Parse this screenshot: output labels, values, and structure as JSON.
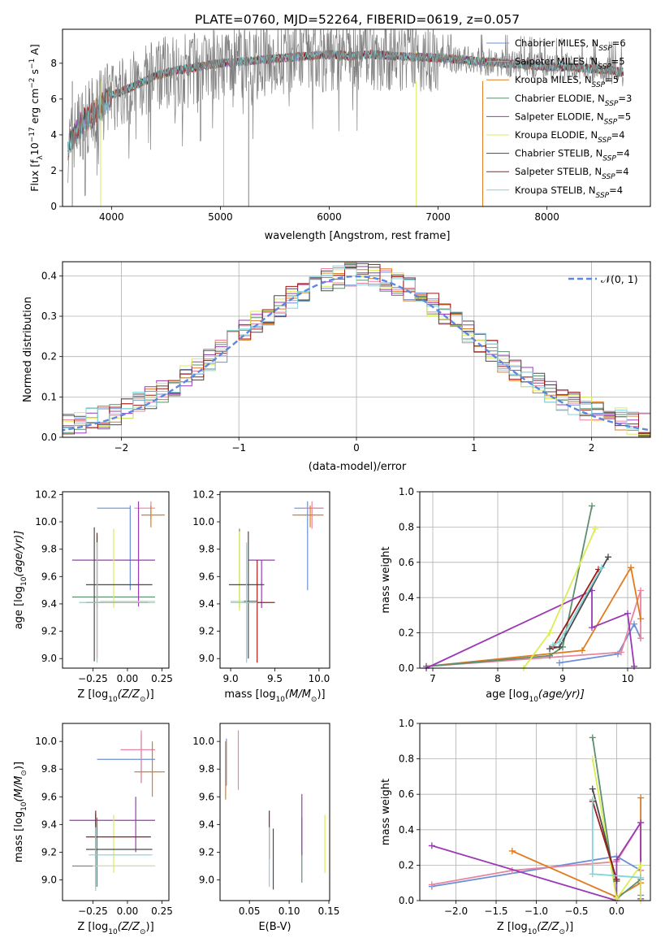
{
  "title": "PLATE=0760, MJD=52264, FIBERID=0619, z=0.057",
  "colors": [
    "#6b8fd6",
    "#e8849f",
    "#e07b20",
    "#5e8f6e",
    "#9b3ab4",
    "#dcec54",
    "#4a4a4a",
    "#9e1b1b",
    "#82d4d8"
  ],
  "legend_top": [
    {
      "pre": "Chabrier MILES, N",
      "sub": "SSP",
      "post": "=6"
    },
    {
      "pre": "Salpeter MILES, N",
      "sub": "SSP",
      "post": "=5"
    },
    {
      "pre": "Kroupa MILES, N",
      "sub": "SSP",
      "post": "=5"
    },
    {
      "pre": "Chabrier ELODIE, N",
      "sub": "SSP",
      "post": "=3"
    },
    {
      "pre": "Salpeter ELODIE, N",
      "sub": "SSP",
      "post": "=5"
    },
    {
      "pre": "Kroupa ELODIE, N",
      "sub": "SSP",
      "post": "=4"
    },
    {
      "pre": "Chabrier STELIB, N",
      "sub": "SSP",
      "post": "=4"
    },
    {
      "pre": "Salpeter STELIB, N",
      "sub": "SSP",
      "post": "=4"
    },
    {
      "pre": "Kroupa STELIB, N",
      "sub": "SSP",
      "post": "=4"
    }
  ],
  "chart_data": [
    {
      "id": "spectrum",
      "type": "line",
      "xlabel": "wavelength [Angstrom, rest frame]",
      "ylabel_pre": "Flux [f",
      "ylabel_post": "10",
      "ylabel_tail": " erg cm",
      "ylabel_u": " s",
      "ylabel_end": " A",
      "ylabel_exp1": "−17",
      "ylabel_exp2": "−2",
      "ylabel_exp3": "−1",
      "ylabel_l": "λ",
      "xlim": [
        3550,
        8950
      ],
      "ylim": [
        0,
        9.9
      ],
      "xticks": [
        "4000",
        "5000",
        "6000",
        "7000",
        "8000"
      ],
      "xtick_values": [
        4000,
        5000,
        6000,
        7000,
        8000
      ],
      "yticks": [
        "0",
        "2",
        "4",
        "6",
        "8"
      ],
      "ytick_values": [
        0,
        2,
        4,
        6,
        8
      ],
      "continuum_x": [
        3600,
        3700,
        3800,
        3900,
        4000,
        4200,
        4400,
        4600,
        4800,
        5000,
        5200,
        5400,
        5600,
        5800,
        6000,
        6200,
        6400,
        6600,
        6800,
        7000,
        7200,
        7400,
        7600,
        7800,
        8000,
        8200,
        8400,
        8600,
        8700
      ],
      "continuum_y": [
        3.4,
        4.5,
        5.0,
        5.6,
        6.2,
        6.7,
        7.3,
        7.6,
        7.8,
        8.0,
        8.1,
        8.2,
        8.3,
        8.4,
        8.5,
        8.4,
        8.5,
        8.4,
        8.35,
        8.3,
        8.2,
        8.1,
        8.0,
        7.9,
        7.8,
        7.8,
        7.7,
        7.6,
        7.5
      ],
      "observed_series_color": "#808080"
    },
    {
      "id": "residuals",
      "type": "step",
      "xlabel": "(data-model)/error",
      "ylabel": "Normed distribution",
      "xlim": [
        -2.5,
        2.5
      ],
      "ylim": [
        0,
        0.435
      ],
      "xticks": [
        "−2",
        "−1",
        "0",
        "1",
        "2"
      ],
      "xtick_values": [
        -2,
        -1,
        0,
        1,
        2
      ],
      "yticks": [
        "0.0",
        "0.1",
        "0.2",
        "0.3",
        "0.4"
      ],
      "ytick_values": [
        0,
        0.1,
        0.2,
        0.3,
        0.4
      ],
      "legend": "𝒩(0, 1)",
      "bin_width": 0.1
    },
    {
      "id": "age_vs_Z",
      "type": "errorbar",
      "xlabel": "Z [log",
      "xlabel_sub": "10",
      "xlabel_tail": "(Z/Z",
      "xlabel_end": ")]",
      "ylabel": "age  [log",
      "ylabel_sub": "10",
      "ylabel_tail": "(age/yr)]",
      "xlim": [
        -0.47,
        0.3
      ],
      "ylim": [
        8.93,
        10.22
      ],
      "xticks": [
        "−0.25",
        "0.00",
        "0.25"
      ],
      "xtick_values": [
        -0.25,
        0,
        0.25
      ],
      "yticks": [
        "9.0",
        "9.2",
        "9.4",
        "9.6",
        "9.8",
        "10.0",
        "10.2"
      ],
      "ytick_values": [
        9.0,
        9.2,
        9.4,
        9.6,
        9.8,
        10.0,
        10.2
      ],
      "points": [
        {
          "x": 0.02,
          "y": 10.1,
          "xe": [
            -0.22,
            0.02
          ],
          "ye": [
            9.5,
            10.12
          ],
          "c": 0
        },
        {
          "x": 0.17,
          "y": 10.1,
          "xe": [
            0.05,
            0.2
          ],
          "ye": [
            10.02,
            10.15
          ],
          "c": 1
        },
        {
          "x": 0.17,
          "y": 10.05,
          "xe": [
            0.1,
            0.27
          ],
          "ye": [
            9.96,
            10.12
          ],
          "c": 2
        },
        {
          "x": -0.22,
          "y": 9.45,
          "xe": [
            -0.4,
            0.2
          ],
          "ye": [
            9.37,
            9.9
          ],
          "c": 3
        },
        {
          "x": 0.08,
          "y": 9.72,
          "xe": [
            -0.4,
            0.2
          ],
          "ye": [
            9.38,
            10.15
          ],
          "c": 4
        },
        {
          "x": -0.1,
          "y": 9.42,
          "xe": [
            -0.2,
            0.2
          ],
          "ye": [
            9.37,
            9.95
          ],
          "c": 5
        },
        {
          "x": -0.24,
          "y": 9.54,
          "xe": [
            -0.3,
            0.18
          ],
          "ye": [
            8.98,
            9.96
          ],
          "c": 6
        },
        {
          "x": -0.22,
          "y": 9.41,
          "xe": [
            -0.3,
            0.15
          ],
          "ye": [
            9.0,
            9.92
          ],
          "c": 7
        },
        {
          "x": -0.22,
          "y": 9.41,
          "xe": [
            -0.35,
            0.2
          ],
          "ye": [
            8.97,
            9.85
          ],
          "c": 8
        }
      ]
    },
    {
      "id": "age_vs_mass",
      "type": "errorbar",
      "xlabel": "mass [log",
      "xlabel_sub": "10",
      "xlabel_tail": "(M/M",
      "xlabel_end": ")]",
      "xlim": [
        8.88,
        10.12
      ],
      "ylim": [
        8.93,
        10.22
      ],
      "xticks": [
        "9.0",
        "9.5",
        "10.0"
      ],
      "xtick_values": [
        9.0,
        9.5,
        10.0
      ],
      "yticks": [
        "9.0",
        "9.2",
        "9.4",
        "9.6",
        "9.8",
        "10.0",
        "10.2"
      ],
      "ytick_values": [
        9.0,
        9.2,
        9.4,
        9.6,
        9.8,
        10.0,
        10.2
      ],
      "points": [
        {
          "x": 9.87,
          "y": 10.1,
          "xe": [
            9.72,
            10.05
          ],
          "ye": [
            9.5,
            10.15
          ],
          "c": 0
        },
        {
          "x": 9.92,
          "y": 10.1,
          "xe": [
            9.82,
            10.05
          ],
          "ye": [
            9.95,
            10.15
          ],
          "c": 1
        },
        {
          "x": 9.9,
          "y": 10.05,
          "xe": [
            9.7,
            10.05
          ],
          "ye": [
            9.96,
            10.12
          ],
          "c": 2
        },
        {
          "x": 9.1,
          "y": 9.42,
          "xe": [
            9.0,
            9.3
          ],
          "ye": [
            9.37,
            9.95
          ],
          "c": 3
        },
        {
          "x": 9.35,
          "y": 9.72,
          "xe": [
            9.2,
            9.5
          ],
          "ye": [
            9.37,
            9.72
          ],
          "c": 4
        },
        {
          "x": 9.1,
          "y": 9.42,
          "xe": [
            9.0,
            9.15
          ],
          "ye": [
            9.35,
            9.93
          ],
          "c": 5
        },
        {
          "x": 9.2,
          "y": 9.54,
          "xe": [
            8.98,
            9.38
          ],
          "ye": [
            9.0,
            9.93
          ],
          "c": 6
        },
        {
          "x": 9.3,
          "y": 9.41,
          "xe": [
            9.15,
            9.5
          ],
          "ye": [
            8.97,
            9.72
          ],
          "c": 7
        },
        {
          "x": 9.18,
          "y": 9.41,
          "xe": [
            9.0,
            9.3
          ],
          "ye": [
            8.97,
            9.85
          ],
          "c": 8
        }
      ]
    },
    {
      "id": "weight_vs_age",
      "type": "line",
      "ylabel": "mass weight",
      "xlabel": "age  [log",
      "xlabel_sub": "10",
      "xlabel_tail": "(age/yr)]",
      "xlim": [
        6.8,
        10.35
      ],
      "ylim": [
        0,
        1
      ],
      "xticks": [
        "7",
        "8",
        "9",
        "10"
      ],
      "xtick_values": [
        7,
        8,
        9,
        10
      ],
      "yticks": [
        "0.0",
        "0.2",
        "0.4",
        "0.6",
        "0.8",
        "1.0"
      ],
      "ytick_values": [
        0,
        0.2,
        0.4,
        0.6,
        0.8,
        1.0
      ],
      "series": [
        {
          "c": 0,
          "x": [
            8.95,
            9.85,
            10.1,
            10.2
          ],
          "y": [
            0.03,
            0.08,
            0.25,
            0.17
          ]
        },
        {
          "c": 1,
          "x": [
            6.9,
            9.9,
            10.2,
            10.2
          ],
          "y": [
            0.01,
            0.09,
            0.44,
            0.17
          ]
        },
        {
          "c": 2,
          "x": [
            6.9,
            9.3,
            10.05,
            10.2
          ],
          "y": [
            0.01,
            0.1,
            0.57,
            0.28
          ]
        },
        {
          "c": 3,
          "x": [
            6.9,
            8.8,
            9.0,
            9.45
          ],
          "y": [
            0.01,
            0.07,
            0.12,
            0.92
          ]
        },
        {
          "c": 4,
          "x": [
            6.9,
            9.45,
            9.45,
            10.0,
            10.1
          ],
          "y": [
            0.0,
            0.44,
            0.23,
            0.31,
            0.01
          ]
        },
        {
          "c": 5,
          "x": [
            8.4,
            8.8,
            9.5
          ],
          "y": [
            0.0,
            0.2,
            0.79
          ]
        },
        {
          "c": 6,
          "x": [
            8.8,
            8.95,
            9.7
          ],
          "y": [
            0.11,
            0.12,
            0.63
          ]
        },
        {
          "c": 7,
          "x": [
            8.85,
            9.55
          ],
          "y": [
            0.12,
            0.56
          ]
        },
        {
          "c": 8,
          "x": [
            8.85,
            8.95,
            9.6
          ],
          "y": [
            0.13,
            0.15,
            0.57
          ]
        }
      ]
    },
    {
      "id": "mass_vs_Z",
      "type": "errorbar",
      "ylabel": "mass [log",
      "ylabel_sub": "10",
      "ylabel_tail": "(M/M",
      "ylabel_end": ")]",
      "xlabel": "Z [log",
      "xlabel_sub": "10",
      "xlabel_tail": "(Z/Z",
      "xlabel_end": ")]",
      "xlim": [
        -0.47,
        0.3
      ],
      "ylim": [
        8.85,
        10.13
      ],
      "xticks": [
        "−0.25",
        "0.00",
        "0.25"
      ],
      "xtick_values": [
        -0.25,
        0,
        0.25
      ],
      "yticks": [
        "9.0",
        "9.2",
        "9.4",
        "9.6",
        "9.8",
        "10.0"
      ],
      "ytick_values": [
        9.0,
        9.2,
        9.4,
        9.6,
        9.8,
        10.0
      ],
      "points": [
        {
          "x": 0.1,
          "y": 9.87,
          "xe": [
            -0.22,
            0.2
          ],
          "ye": [
            9.7,
            10.05
          ],
          "c": 0
        },
        {
          "x": 0.1,
          "y": 9.94,
          "xe": [
            -0.05,
            0.2
          ],
          "ye": [
            9.7,
            10.08
          ],
          "c": 1
        },
        {
          "x": 0.18,
          "y": 9.78,
          "xe": [
            0.05,
            0.27
          ],
          "ye": [
            9.6,
            10.0
          ],
          "c": 2
        },
        {
          "x": -0.22,
          "y": 9.1,
          "xe": [
            -0.4,
            0.2
          ],
          "ye": [
            8.95,
            9.45
          ],
          "c": 3
        },
        {
          "x": 0.06,
          "y": 9.43,
          "xe": [
            -0.42,
            0.2
          ],
          "ye": [
            9.2,
            9.6
          ],
          "c": 4
        },
        {
          "x": -0.1,
          "y": 9.1,
          "xe": [
            -0.25,
            0.2
          ],
          "ye": [
            9.05,
            9.47
          ],
          "c": 5
        },
        {
          "x": -0.23,
          "y": 9.22,
          "xe": [
            -0.3,
            0.18
          ],
          "ye": [
            8.95,
            9.48
          ],
          "c": 6
        },
        {
          "x": -0.23,
          "y": 9.31,
          "xe": [
            -0.3,
            0.17
          ],
          "ye": [
            9.15,
            9.5
          ],
          "c": 7
        },
        {
          "x": -0.23,
          "y": 9.18,
          "xe": [
            -0.28,
            0.18
          ],
          "ye": [
            8.92,
            9.38
          ],
          "c": 8
        }
      ]
    },
    {
      "id": "mass_vs_ebv",
      "type": "errorbar",
      "xlabel": "E(B-V)",
      "xlim": [
        0.013,
        0.151
      ],
      "ylim": [
        8.85,
        10.13
      ],
      "xticks": [
        "0.05",
        "0.10",
        "0.15"
      ],
      "xtick_values": [
        0.05,
        0.1,
        0.15
      ],
      "yticks": [
        "9.0",
        "9.2",
        "9.4",
        "9.6",
        "9.8",
        "10.0"
      ],
      "ytick_values": [
        9.0,
        9.2,
        9.4,
        9.6,
        9.8,
        10.0
      ],
      "points": [
        {
          "x": 0.021,
          "y": 9.87,
          "ye": [
            9.68,
            10.02
          ],
          "c": 0
        },
        {
          "x": 0.036,
          "y": 9.8,
          "ye": [
            9.65,
            10.08
          ],
          "c": 1
        },
        {
          "x": 0.02,
          "y": 9.8,
          "ye": [
            9.58,
            10.0
          ],
          "c": 2
        },
        {
          "x": 0.116,
          "y": 9.1,
          "ye": [
            8.98,
            9.45
          ],
          "c": 3
        },
        {
          "x": 0.116,
          "y": 9.4,
          "ye": [
            9.18,
            9.62
          ],
          "c": 4
        },
        {
          "x": 0.145,
          "y": 9.1,
          "ye": [
            9.05,
            9.47
          ],
          "c": 5
        },
        {
          "x": 0.08,
          "y": 9.2,
          "ye": [
            8.93,
            9.37
          ],
          "c": 6
        },
        {
          "x": 0.075,
          "y": 9.3,
          "ye": [
            9.15,
            9.5
          ],
          "c": 7
        },
        {
          "x": 0.075,
          "y": 9.2,
          "ye": [
            8.95,
            9.38
          ],
          "c": 8
        }
      ]
    },
    {
      "id": "weight_vs_Z",
      "type": "line",
      "ylabel": "mass weight",
      "xlabel": "Z [log",
      "xlabel_sub": "10",
      "xlabel_tail": "(Z/Z",
      "xlabel_end": ")]",
      "xlim": [
        -2.45,
        0.42
      ],
      "ylim": [
        0,
        1
      ],
      "xticks": [
        "−2.0",
        "−1.5",
        "−1.0",
        "−0.5",
        "0.0"
      ],
      "xtick_values": [
        -2,
        -1.5,
        -1,
        -0.5,
        0
      ],
      "yticks": [
        "0.0",
        "0.2",
        "0.4",
        "0.6",
        "0.8",
        "1.0"
      ],
      "ytick_values": [
        0,
        0.2,
        0.4,
        0.6,
        0.8,
        1.0
      ],
      "series": [
        {
          "c": 0,
          "x": [
            -2.3,
            0.0,
            0.3,
            0.3
          ],
          "y": [
            0.08,
            0.25,
            0.17,
            0.03
          ]
        },
        {
          "c": 1,
          "x": [
            -2.3,
            -1.3,
            0.0,
            0.3,
            0.3
          ],
          "y": [
            0.09,
            0.17,
            0.22,
            0.44,
            0.17
          ]
        },
        {
          "c": 2,
          "x": [
            -1.3,
            0.0,
            0.3,
            0.3
          ],
          "y": [
            0.28,
            0.02,
            0.1,
            0.58
          ]
        },
        {
          "c": 3,
          "x": [
            -0.3,
            0.0,
            0.3
          ],
          "y": [
            0.92,
            0.01,
            0.12
          ]
        },
        {
          "c": 4,
          "x": [
            -2.3,
            0.0,
            0.0,
            0.3,
            0.3
          ],
          "y": [
            0.31,
            0.0,
            0.23,
            0.44,
            0.01
          ]
        },
        {
          "c": 5,
          "x": [
            -0.3,
            0.0,
            0.3,
            0.3
          ],
          "y": [
            0.8,
            0.01,
            0.2,
            0.0
          ]
        },
        {
          "c": 6,
          "x": [
            -0.3,
            0.0,
            0.0
          ],
          "y": [
            0.63,
            0.11,
            0.12
          ]
        },
        {
          "c": 7,
          "x": [
            -0.3,
            0.0
          ],
          "y": [
            0.56,
            0.12
          ]
        },
        {
          "c": 8,
          "x": [
            -0.3,
            -0.3,
            0.3
          ],
          "y": [
            0.57,
            0.15,
            0.13
          ]
        }
      ]
    }
  ]
}
